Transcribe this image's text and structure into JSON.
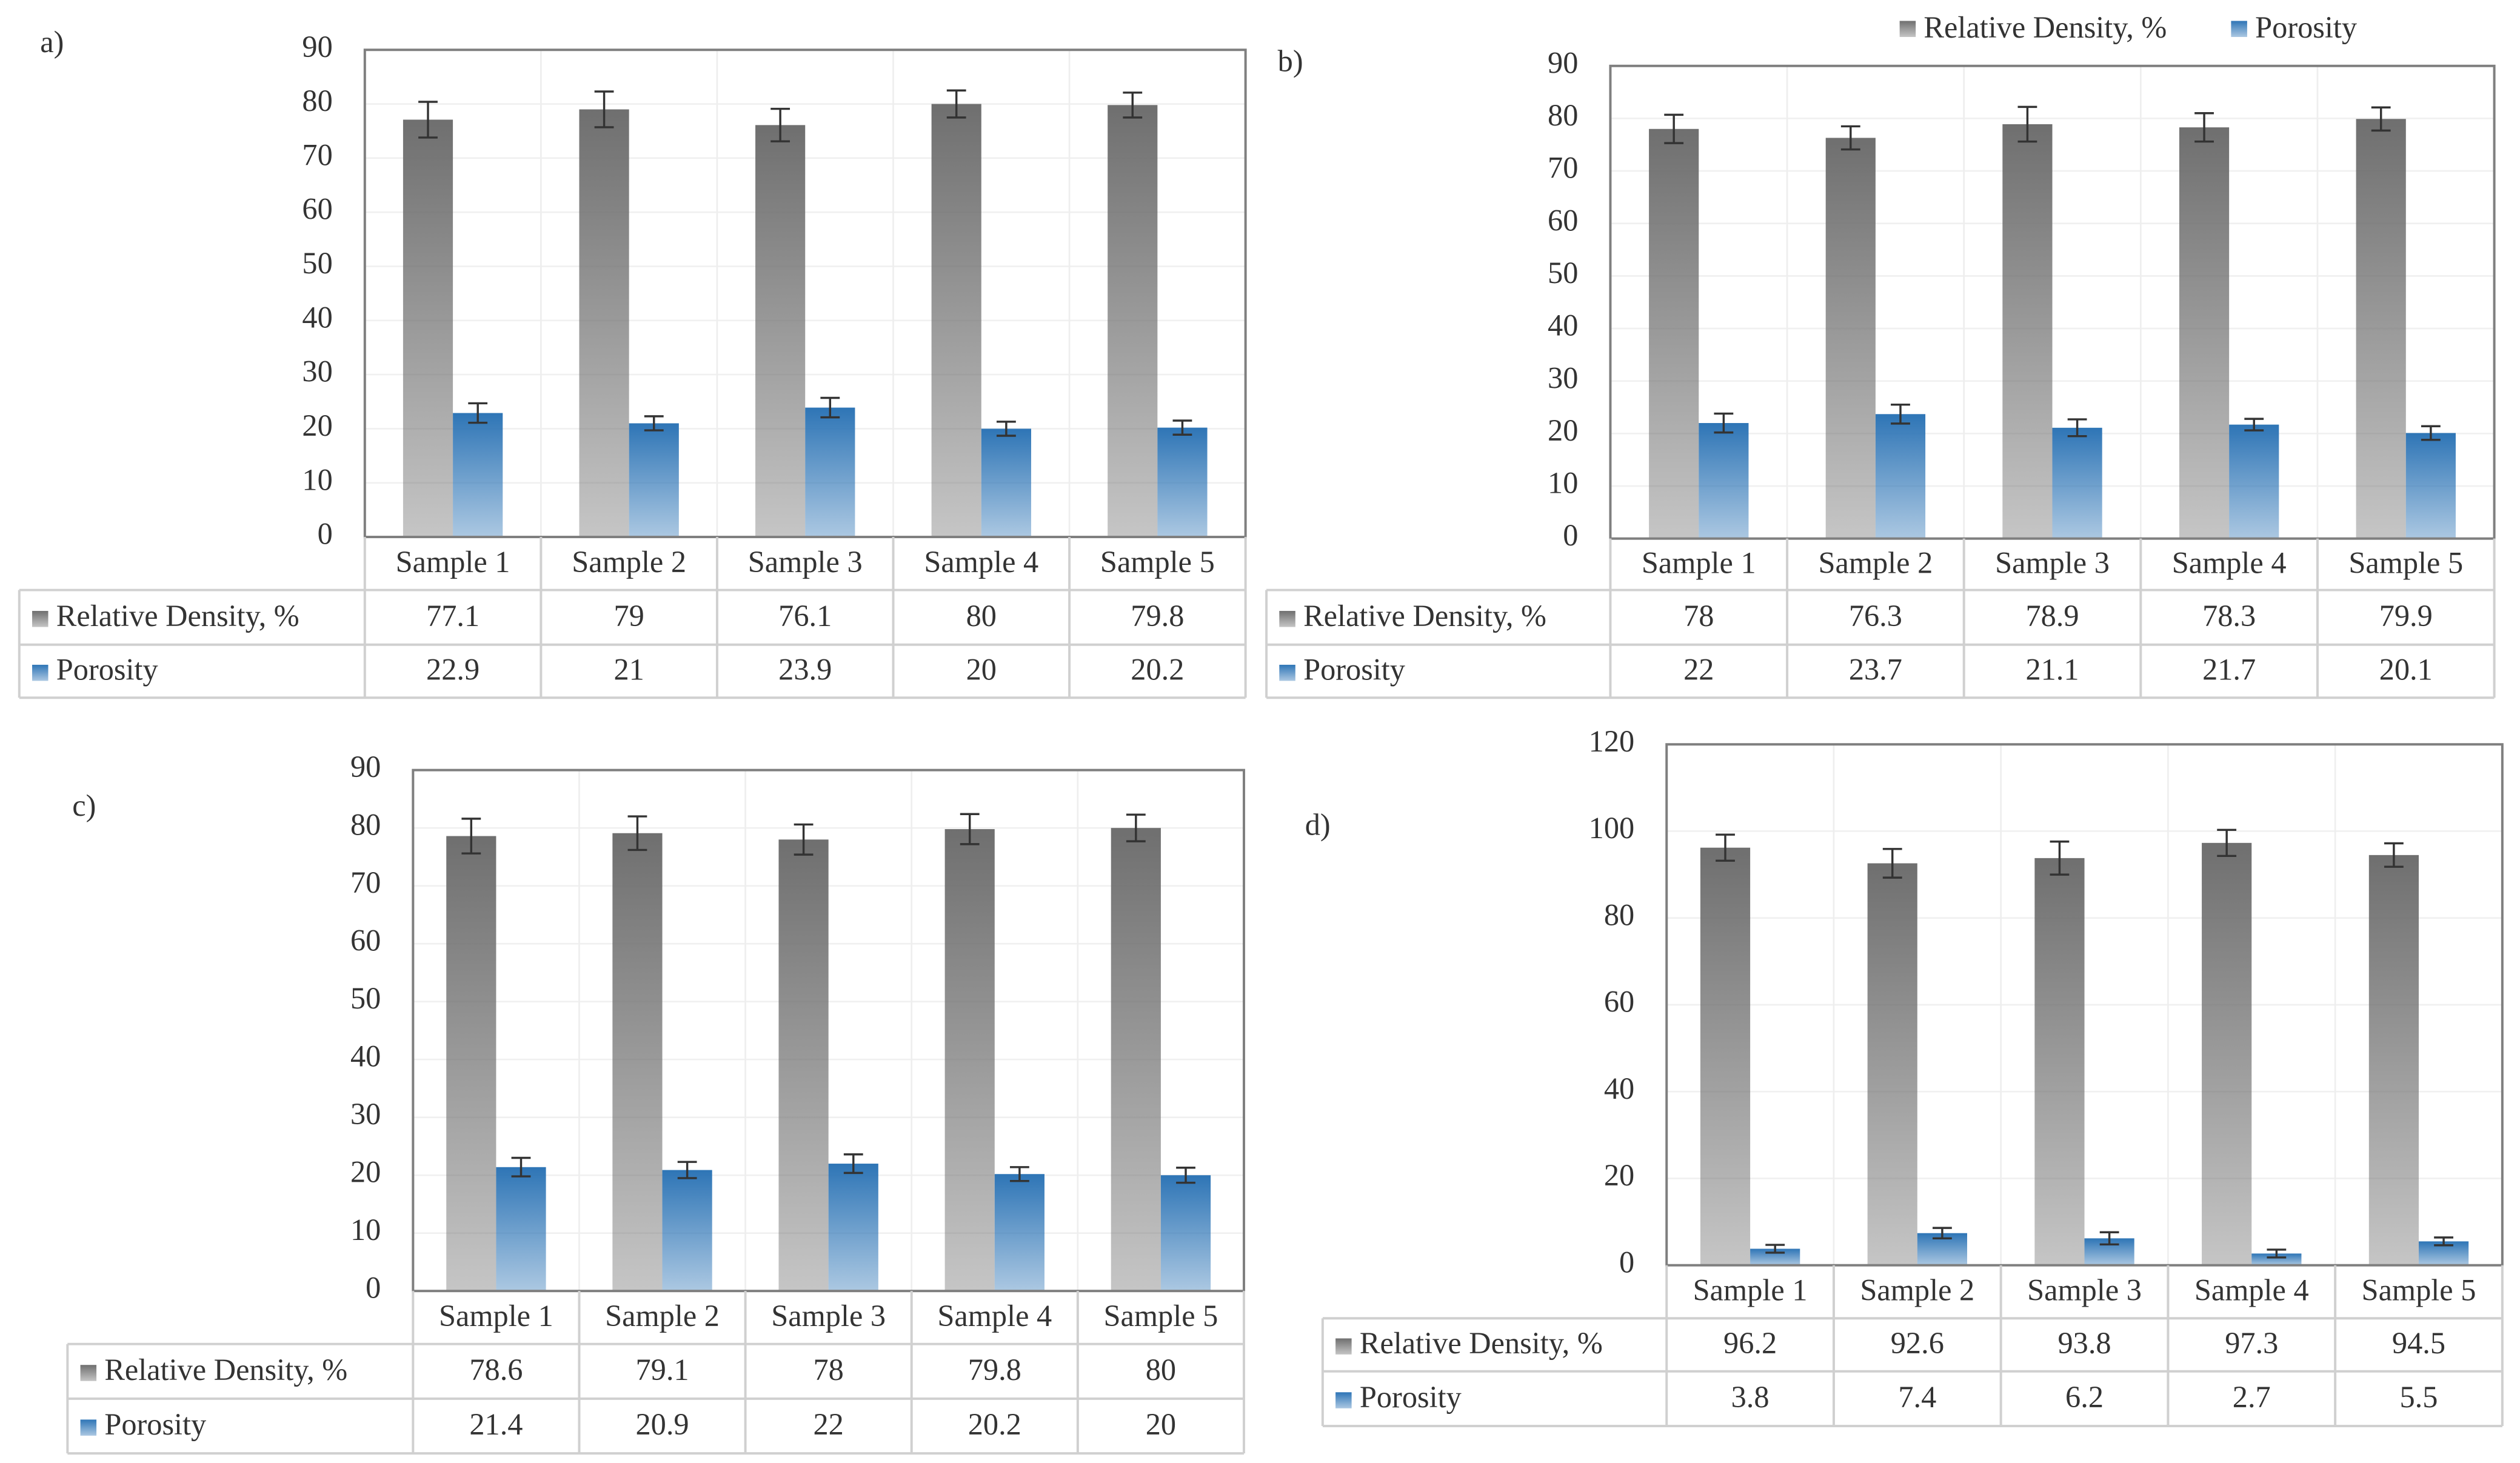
{
  "chart_data": [
    {
      "type": "bar",
      "panel_label": "a)",
      "categories": [
        "Sample 1",
        "Sample 2",
        "Sample 3",
        "Sample 4",
        "Sample 5"
      ],
      "series": [
        {
          "name": "Relative Density, %",
          "color": "#6f6f6f",
          "values": [
            77.1,
            79,
            76.1,
            80,
            79.8
          ],
          "errors": [
            3.3,
            3.3,
            3,
            2.5,
            2.3
          ]
        },
        {
          "name": "Porosity",
          "color": "#2e75b6",
          "values": [
            22.9,
            21,
            23.9,
            20,
            20.2
          ],
          "errors": [
            1.8,
            1.3,
            1.8,
            1.3,
            1.3
          ]
        }
      ],
      "ylim": [
        0,
        90
      ],
      "yticks": [
        0,
        10,
        20,
        30,
        40,
        50,
        60,
        70,
        80,
        90
      ],
      "grid": true
    },
    {
      "type": "bar",
      "panel_label": "b)",
      "categories": [
        "Sample 1",
        "Sample 2",
        "Sample 3",
        "Sample 4",
        "Sample 5"
      ],
      "series": [
        {
          "name": "Relative Density, %",
          "color": "#6f6f6f",
          "values": [
            78,
            76.3,
            78.9,
            78.3,
            79.9
          ],
          "errors": [
            2.7,
            2.2,
            3.3,
            2.7,
            2.2
          ]
        },
        {
          "name": "Porosity",
          "color": "#2e75b6",
          "values": [
            22,
            23.7,
            21.1,
            21.7,
            20.1
          ],
          "errors": [
            1.8,
            1.8,
            1.6,
            1.1,
            1.3
          ]
        }
      ],
      "ylim": [
        0,
        90
      ],
      "yticks": [
        0,
        10,
        20,
        30,
        40,
        50,
        60,
        70,
        80,
        90
      ],
      "grid": true,
      "legend": "top"
    },
    {
      "type": "bar",
      "panel_label": "c)",
      "categories": [
        "Sample 1",
        "Sample 2",
        "Sample 3",
        "Sample 4",
        "Sample 5"
      ],
      "series": [
        {
          "name": "Relative Density, %",
          "color": "#6f6f6f",
          "values": [
            78.6,
            79.1,
            78,
            79.8,
            80
          ],
          "errors": [
            3,
            2.9,
            2.6,
            2.6,
            2.3
          ]
        },
        {
          "name": "Porosity",
          "color": "#2e75b6",
          "values": [
            21.4,
            20.9,
            22,
            20.2,
            20
          ],
          "errors": [
            1.6,
            1.4,
            1.6,
            1.2,
            1.3
          ]
        }
      ],
      "ylim": [
        0,
        90
      ],
      "yticks": [
        0,
        10,
        20,
        30,
        40,
        50,
        60,
        70,
        80,
        90
      ],
      "grid": true
    },
    {
      "type": "bar",
      "panel_label": "d)",
      "categories": [
        "Sample 1",
        "Sample 2",
        "Sample 3",
        "Sample 4",
        "Sample 5"
      ],
      "series": [
        {
          "name": "Relative Density, %",
          "color": "#6f6f6f",
          "values": [
            96.2,
            92.6,
            93.8,
            97.3,
            94.5
          ],
          "errors": [
            3,
            3.3,
            3.8,
            3,
            2.7
          ]
        },
        {
          "name": "Porosity",
          "color": "#2e75b6",
          "values": [
            3.8,
            7.4,
            6.2,
            2.7,
            5.5
          ],
          "errors": [
            0.9,
            1.2,
            1.4,
            0.9,
            0.9
          ]
        }
      ],
      "ylim": [
        0,
        120
      ],
      "yticks": [
        0,
        20,
        40,
        60,
        80,
        100,
        120
      ],
      "grid": true
    }
  ]
}
